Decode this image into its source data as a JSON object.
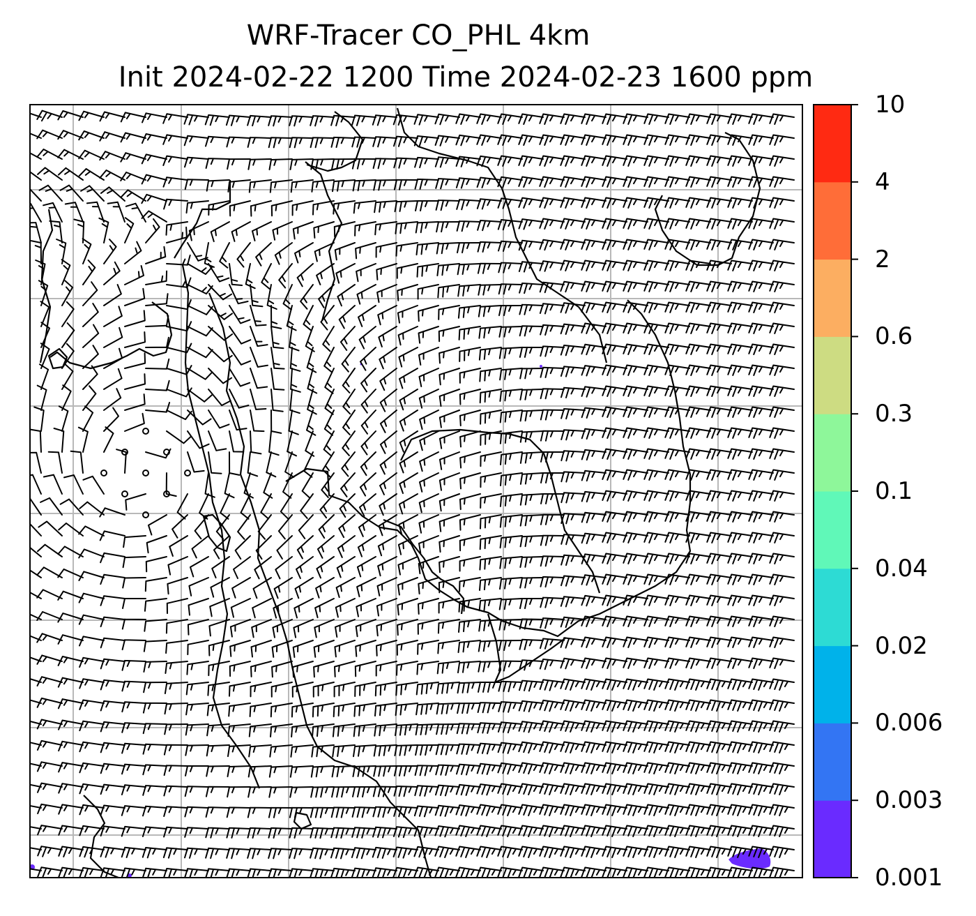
{
  "title": {
    "line1": "WRF-Tracer CO_PHL 4km",
    "line2": "Init 2024-02-22 1200 Time 2024-02-23 1600 ppm"
  },
  "colorbar": {
    "levels": [
      "0.001",
      "0.003",
      "0.006",
      "0.02",
      "0.04",
      "0.1",
      "0.3",
      "0.6",
      "2",
      "4",
      "10"
    ],
    "colors": [
      "#6a2bff",
      "#3375f3",
      "#00b2ea",
      "#2ddbd4",
      "#60f8b8",
      "#8ef79a",
      "#cddc82",
      "#fcae61",
      "#ff6d38",
      "#ff2a12"
    ]
  },
  "map": {
    "gridlines": true,
    "grid_color": "#b8b8b8",
    "coastline_color": "#000000",
    "tracer_color": "#6a2bff",
    "wind_barb_color": "#000000"
  }
}
